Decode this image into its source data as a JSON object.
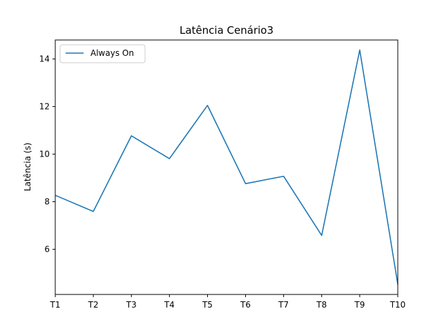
{
  "chart_data": {
    "type": "line",
    "title": "Latência Cenário3",
    "xlabel": "",
    "ylabel": "Latência (s)",
    "categories": [
      "T1",
      "T2",
      "T3",
      "T4",
      "T5",
      "T6",
      "T7",
      "T8",
      "T9",
      "T10"
    ],
    "series": [
      {
        "name": "Always On",
        "color": "#1f77b4",
        "values": [
          8.27,
          7.59,
          10.77,
          9.81,
          12.05,
          8.76,
          9.07,
          6.58,
          14.38,
          4.52
        ]
      }
    ],
    "ylim": [
      4.1,
      14.8
    ],
    "yticks": [
      6,
      8,
      10,
      12,
      14
    ],
    "grid": false,
    "legend_position": "upper left"
  }
}
